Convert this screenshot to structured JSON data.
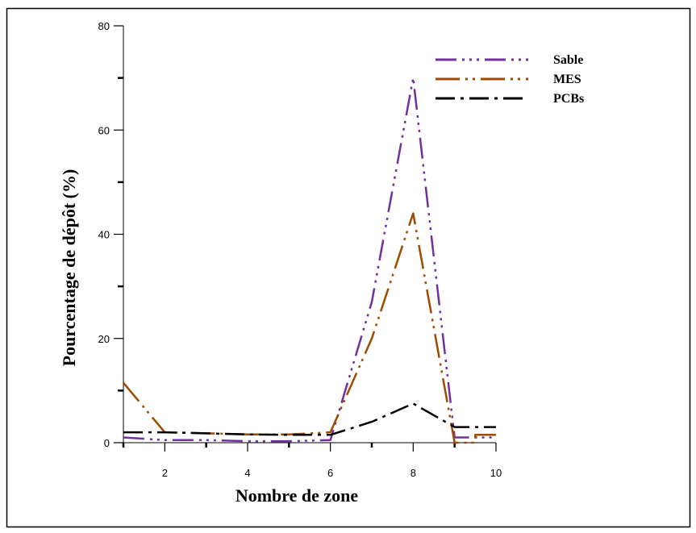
{
  "chart_data": {
    "type": "line",
    "xlabel": "Nombre de zone",
    "ylabel": "Pourcentage de dépôt (%)",
    "xlim": [
      1,
      10
    ],
    "ylim": [
      0,
      80
    ],
    "x_ticks": [
      2,
      4,
      6,
      8,
      10
    ],
    "x_tick_labels": [
      "2",
      "4",
      "6",
      "8",
      "10"
    ],
    "y_ticks": [
      0,
      20,
      40,
      60,
      80
    ],
    "y_tick_labels": [
      "0",
      "20",
      "40",
      "60",
      "80"
    ],
    "legend_position": "top-right",
    "grid": false,
    "series": [
      {
        "name": "Sable",
        "color": "#7030a0",
        "points": [
          [
            1,
            1
          ],
          [
            2,
            0.5
          ],
          [
            3,
            0.5
          ],
          [
            4,
            0.3
          ],
          [
            5,
            0.3
          ],
          [
            6,
            0.5
          ],
          [
            7,
            27
          ],
          [
            8,
            70
          ],
          [
            9,
            1
          ],
          [
            10,
            1
          ]
        ]
      },
      {
        "name": "MES",
        "color": "#a04a00",
        "points": [
          [
            1,
            11.5
          ],
          [
            2,
            2
          ],
          [
            3,
            1.8
          ],
          [
            4,
            1.6
          ],
          [
            5,
            1.6
          ],
          [
            6,
            2
          ],
          [
            7,
            20
          ],
          [
            8,
            44
          ],
          [
            9,
            0
          ],
          [
            9.5,
            0
          ],
          [
            9.5,
            1.5
          ],
          [
            10,
            1.5
          ]
        ]
      },
      {
        "name": "PCBs",
        "color": "#000000",
        "points": [
          [
            1,
            2
          ],
          [
            2,
            2
          ],
          [
            3,
            1.8
          ],
          [
            4,
            1.6
          ],
          [
            5,
            1.5
          ],
          [
            6,
            1.5
          ],
          [
            7,
            4
          ],
          [
            8,
            7.5
          ],
          [
            9,
            3
          ],
          [
            10,
            3
          ]
        ]
      }
    ]
  }
}
